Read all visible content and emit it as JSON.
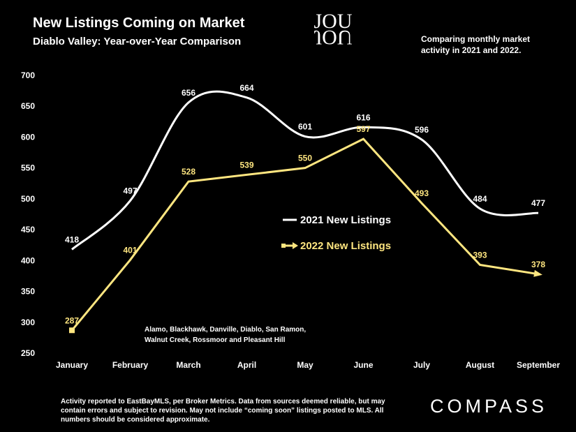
{
  "header": {
    "title": "New Listings Coming on Market",
    "subtitle": "Diablo Valley: Year-over-Year Comparison",
    "note": "Comparing monthly market activity in 2021 and 2022."
  },
  "logo_text": "JOU",
  "regions": "Alamo, Blackhawk, Danville, Diablo, San Ramon, Walnut Creek, Rossmoor and Pleasant Hill",
  "footer": "Activity reported to EastBayMLS, per Broker Metrics. Data from sources deemed reliable, but may contain errors and subject to revision. May not include “coming soon” listings posted to MLS. All numbers should be considered approximate.",
  "brand": "COMPASS",
  "colors": {
    "series_2021": "#ffffff",
    "series_2022": "#ffe680",
    "background": "#000000"
  },
  "chart_data": {
    "type": "line",
    "title": "New Listings Coming on Market",
    "categories": [
      "January",
      "February",
      "March",
      "April",
      "May",
      "June",
      "July",
      "August",
      "September"
    ],
    "ylim": [
      250,
      700
    ],
    "yticks": [
      250,
      300,
      350,
      400,
      450,
      500,
      550,
      600,
      650,
      700
    ],
    "series": [
      {
        "name": "2021 New Listings",
        "values": [
          418,
          497,
          656,
          664,
          601,
          616,
          596,
          484,
          477
        ]
      },
      {
        "name": "2022 New Listings",
        "values": [
          287,
          401,
          528,
          539,
          550,
          597,
          493,
          393,
          378
        ]
      }
    ]
  }
}
